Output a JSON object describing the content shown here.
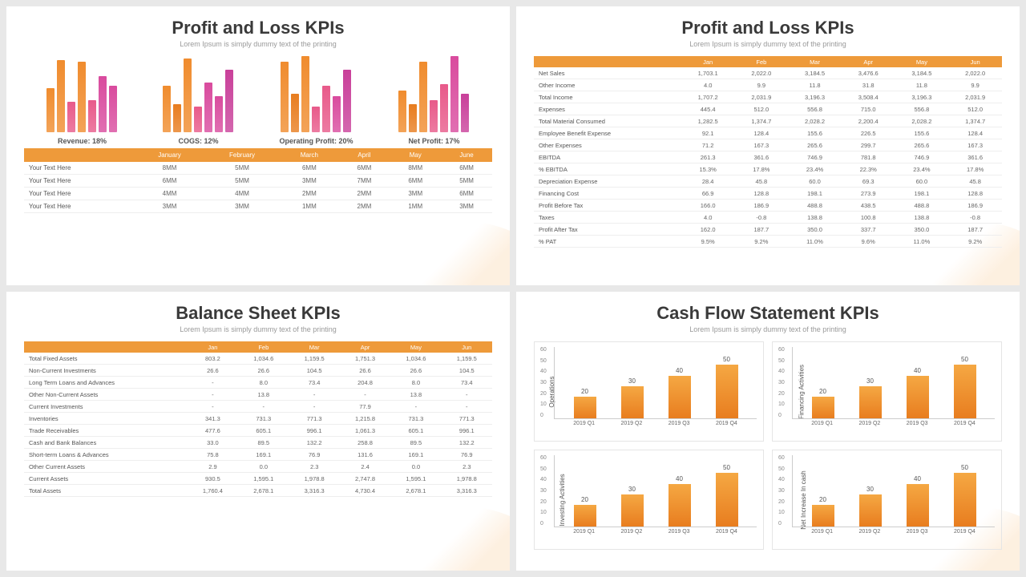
{
  "slide1": {
    "title": "Profit and Loss KPIs",
    "subtitle": "Lorem Ipsum is simply dummy text of the printing",
    "charts": [
      {
        "label": "Revenue: 18%",
        "heights": [
          55,
          90,
          38,
          88,
          40,
          70,
          58
        ],
        "colors": [
          "#f08c2e",
          "#f08c2e",
          "#e85a8a",
          "#f08c2e",
          "#e85a8a",
          "#d94b9e",
          "#d94b9e"
        ]
      },
      {
        "label": "COGS: 12%",
        "heights": [
          58,
          35,
          92,
          32,
          62,
          45,
          78
        ],
        "colors": [
          "#f08c2e",
          "#e87d1f",
          "#f08c2e",
          "#e85a8a",
          "#d94b9e",
          "#d94b9e",
          "#c9409a"
        ]
      },
      {
        "label": "Operating Profit: 20%",
        "heights": [
          88,
          48,
          95,
          32,
          58,
          45,
          78
        ],
        "colors": [
          "#f08c2e",
          "#e87d1f",
          "#f08c2e",
          "#e85a8a",
          "#e85a8a",
          "#d94b9e",
          "#c9409a"
        ]
      },
      {
        "label": "Net Profit: 17%",
        "heights": [
          52,
          35,
          88,
          40,
          60,
          95,
          48
        ],
        "colors": [
          "#f08c2e",
          "#e87d1f",
          "#f08c2e",
          "#e85a8a",
          "#e85a8a",
          "#d94b9e",
          "#c9409a"
        ]
      }
    ],
    "table": {
      "headers": [
        "",
        "January",
        "February",
        "March",
        "April",
        "May",
        "June"
      ],
      "rows": [
        [
          "Your Text Here",
          "8MM",
          "5MM",
          "6MM",
          "6MM",
          "8MM",
          "6MM"
        ],
        [
          "Your Text Here",
          "6MM",
          "5MM",
          "3MM",
          "7MM",
          "6MM",
          "5MM"
        ],
        [
          "Your Text Here",
          "4MM",
          "4MM",
          "2MM",
          "2MM",
          "3MM",
          "6MM"
        ],
        [
          "Your Text Here",
          "3MM",
          "3MM",
          "1MM",
          "2MM",
          "1MM",
          "3MM"
        ]
      ]
    }
  },
  "slide2": {
    "title": "Profit and Loss KPIs",
    "subtitle": "Lorem Ipsum is simply dummy text of the printing",
    "table": {
      "headers": [
        "",
        "Jan",
        "Feb",
        "Mar",
        "Apr",
        "May",
        "Jun"
      ],
      "rows": [
        [
          "Net Sales",
          "1,703.1",
          "2,022.0",
          "3,184.5",
          "3,476.6",
          "3,184.5",
          "2,022.0"
        ],
        [
          "Other Income",
          "4.0",
          "9.9",
          "11.8",
          "31.8",
          "11.8",
          "9.9"
        ],
        [
          "Total Income",
          "1,707.2",
          "2,031.9",
          "3,196.3",
          "3,508.4",
          "3,196.3",
          "2,031.9"
        ],
        [
          "Expenses",
          "445.4",
          "512.0",
          "556.8",
          "715.0",
          "556.8",
          "512.0"
        ],
        [
          "Total Material Consumed",
          "1,282.5",
          "1,374.7",
          "2,028.2",
          "2,200.4",
          "2,028.2",
          "1,374.7"
        ],
        [
          "Employee Benefit Expense",
          "92.1",
          "128.4",
          "155.6",
          "226.5",
          "155.6",
          "128.4"
        ],
        [
          "Other Expenses",
          "71.2",
          "167.3",
          "265.6",
          "299.7",
          "265.6",
          "167.3"
        ],
        [
          "EBITDA",
          "261.3",
          "361.6",
          "746.9",
          "781.8",
          "746.9",
          "361.6"
        ],
        [
          "% EBITDA",
          "15.3%",
          "17.8%",
          "23.4%",
          "22.3%",
          "23.4%",
          "17.8%"
        ],
        [
          "Depreciation Expense",
          "28.4",
          "45.8",
          "60.0",
          "69.3",
          "60.0",
          "45.8"
        ],
        [
          "Financing Cost",
          "66.9",
          "128.8",
          "198.1",
          "273.9",
          "198.1",
          "128.8"
        ],
        [
          "Profit Before Tax",
          "166.0",
          "186.9",
          "488.8",
          "438.5",
          "488.8",
          "186.9"
        ],
        [
          "Taxes",
          "4.0",
          "-0.8",
          "138.8",
          "100.8",
          "138.8",
          "-0.8"
        ],
        [
          "Profit After Tax",
          "162.0",
          "187.7",
          "350.0",
          "337.7",
          "350.0",
          "187.7"
        ],
        [
          "% PAT",
          "9.5%",
          "9.2%",
          "11.0%",
          "9.6%",
          "11.0%",
          "9.2%"
        ]
      ]
    }
  },
  "slide3": {
    "title": "Balance Sheet KPIs",
    "subtitle": "Lorem Ipsum is simply dummy text of the printing",
    "table": {
      "headers": [
        "",
        "Jan",
        "Feb",
        "Mar",
        "Apr",
        "May",
        "Jun"
      ],
      "rows": [
        [
          "Total Fixed Assets",
          "803.2",
          "1,034.6",
          "1,159.5",
          "1,751.3",
          "1,034.6",
          "1,159.5"
        ],
        [
          "Non-Current Investments",
          "26.6",
          "26.6",
          "104.5",
          "26.6",
          "26.6",
          "104.5"
        ],
        [
          "Long Term Loans and Advances",
          "-",
          "8.0",
          "73.4",
          "204.8",
          "8.0",
          "73.4"
        ],
        [
          "Other Non-Current Assets",
          "-",
          "13.8",
          "-",
          "-",
          "13.8",
          "-"
        ],
        [
          "Current Investments",
          "-",
          "-",
          "-",
          "77.9",
          "-",
          "-"
        ],
        [
          "Inventories",
          "341.3",
          "731.3",
          "771.3",
          "1,215.8",
          "731.3",
          "771.3"
        ],
        [
          "Trade Receivables",
          "477.6",
          "605.1",
          "996.1",
          "1,061.3",
          "605.1",
          "996.1"
        ],
        [
          "Cash and Bank Balances",
          "33.0",
          "89.5",
          "132.2",
          "258.8",
          "89.5",
          "132.2"
        ],
        [
          "Short-term Loans & Advances",
          "75.8",
          "169.1",
          "76.9",
          "131.6",
          "169.1",
          "76.9"
        ],
        [
          "Other Current Assets",
          "2.9",
          "0.0",
          "2.3",
          "2.4",
          "0.0",
          "2.3"
        ],
        [
          "Current Assets",
          "930.5",
          "1,595.1",
          "1,978.8",
          "2,747.8",
          "1,595.1",
          "1,978.8"
        ],
        [
          "Total Assets",
          "1,760.4",
          "2,678.1",
          "3,316.3",
          "4,730.4",
          "2,678.1",
          "3,316.3"
        ]
      ]
    }
  },
  "slide4": {
    "title": "Cash Flow Statement KPIs",
    "subtitle": "Lorem Ipsum is simply dummy text of the printing",
    "charts": [
      {
        "ylabel": "Operations",
        "cats": [
          "2019 Q1",
          "2019 Q2",
          "2019 Q3",
          "2019 Q4"
        ],
        "vals": [
          20,
          30,
          40,
          50
        ],
        "ymax": 60,
        "ystep": 10
      },
      {
        "ylabel": "Financing Activities",
        "cats": [
          "2019 Q1",
          "2019 Q2",
          "2019 Q3",
          "2019 Q4"
        ],
        "vals": [
          20,
          30,
          40,
          50
        ],
        "ymax": 60,
        "ystep": 10
      },
      {
        "ylabel": "Investing Activities",
        "cats": [
          "2019 Q1",
          "2019 Q2",
          "2019 Q3",
          "2019 Q4"
        ],
        "vals": [
          20,
          30,
          40,
          50
        ],
        "ymax": 60,
        "ystep": 10
      },
      {
        "ylabel": "Net Increase In cash",
        "cats": [
          "2019 Q1",
          "2019 Q2",
          "2019 Q3",
          "2019 Q4"
        ],
        "vals": [
          20,
          30,
          40,
          50
        ],
        "ymax": 60,
        "ystep": 10
      }
    ],
    "bar_color_top": "#f5a843",
    "bar_color_bottom": "#e87d1f"
  },
  "accent": "#ee9a3a"
}
